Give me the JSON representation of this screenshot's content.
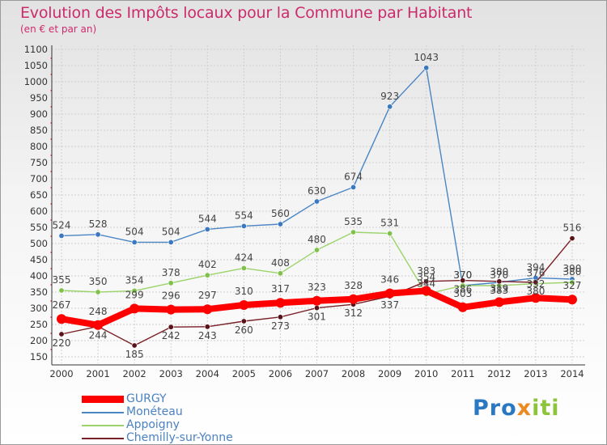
{
  "title": "Evolution des Impôts locaux pour la Commune par Habitant",
  "subtitle": "(en € et par an)",
  "logo": {
    "part1": "Pro",
    "part2": "x",
    "part3": "iti"
  },
  "colors": {
    "title": "#cc2b6b",
    "axis_text": "#333333",
    "grid": "#cfcfcf",
    "legend_text": "#4a82c2"
  },
  "chart_data": {
    "type": "line",
    "title": "Evolution des Impôts locaux pour la Commune par Habitant",
    "subtitle": "(en € et par an)",
    "xlabel": "",
    "ylabel": "",
    "x": [
      2000,
      2001,
      2002,
      2003,
      2004,
      2005,
      2006,
      2007,
      2008,
      2009,
      2010,
      2011,
      2012,
      2013,
      2014
    ],
    "ylim": [
      150,
      1100
    ],
    "yticks": [
      150,
      200,
      250,
      300,
      350,
      400,
      450,
      500,
      550,
      600,
      650,
      700,
      750,
      800,
      850,
      900,
      950,
      1000,
      1050,
      1100
    ],
    "grid": true,
    "legend_position": "bottom-left",
    "series": [
      {
        "name": "Monéteau",
        "color": "#4a86c4",
        "marker": "#3a78c0",
        "values": [
          524,
          528,
          504,
          504,
          544,
          554,
          560,
          630,
          674,
          923,
          1043,
          370,
          380,
          394,
          390
        ],
        "labels": [
          "524",
          "528",
          "504",
          "504",
          "544",
          "554",
          "560",
          "630",
          "674",
          "923",
          "1043",
          "370",
          "380",
          "394",
          "390"
        ]
      },
      {
        "name": "Appoigny",
        "color": "#9cd36a",
        "marker": "#7fc14a",
        "values": [
          355,
          350,
          354,
          378,
          402,
          424,
          408,
          480,
          535,
          531,
          344,
          370,
          370,
          376,
          380
        ],
        "labels": [
          "355",
          "350",
          "354",
          "378",
          "402",
          "424",
          "408",
          "480",
          "535",
          "531",
          "344",
          "370",
          "370",
          "376",
          "380"
        ]
      },
      {
        "name": "Chemilly-sur-Yonne",
        "color": "#7a2028",
        "marker": "#5a1218",
        "values": [
          220,
          244,
          185,
          242,
          243,
          260,
          273,
          301,
          312,
          337,
          383,
          386,
          383,
          380,
          516
        ],
        "labels": [
          "220",
          "244",
          "185",
          "242",
          "243",
          "260",
          "273",
          "301",
          "312",
          "337",
          "383",
          "386",
          "383",
          "380",
          "516"
        ]
      },
      {
        "name": "GURGY",
        "color": "#ff0000",
        "marker": "#ff0000",
        "values": [
          267,
          248,
          299,
          296,
          297,
          310,
          317,
          323,
          328,
          346,
          354,
          303,
          319,
          332,
          327
        ],
        "labels": [
          "267",
          "248",
          "299",
          "296",
          "297",
          "310",
          "317",
          "323",
          "328",
          "346",
          "354",
          "303",
          "319",
          "332",
          "327"
        ]
      }
    ],
    "legend": [
      "GURGY",
      "Monéteau",
      "Appoigny",
      "Chemilly-sur-Yonne"
    ]
  }
}
